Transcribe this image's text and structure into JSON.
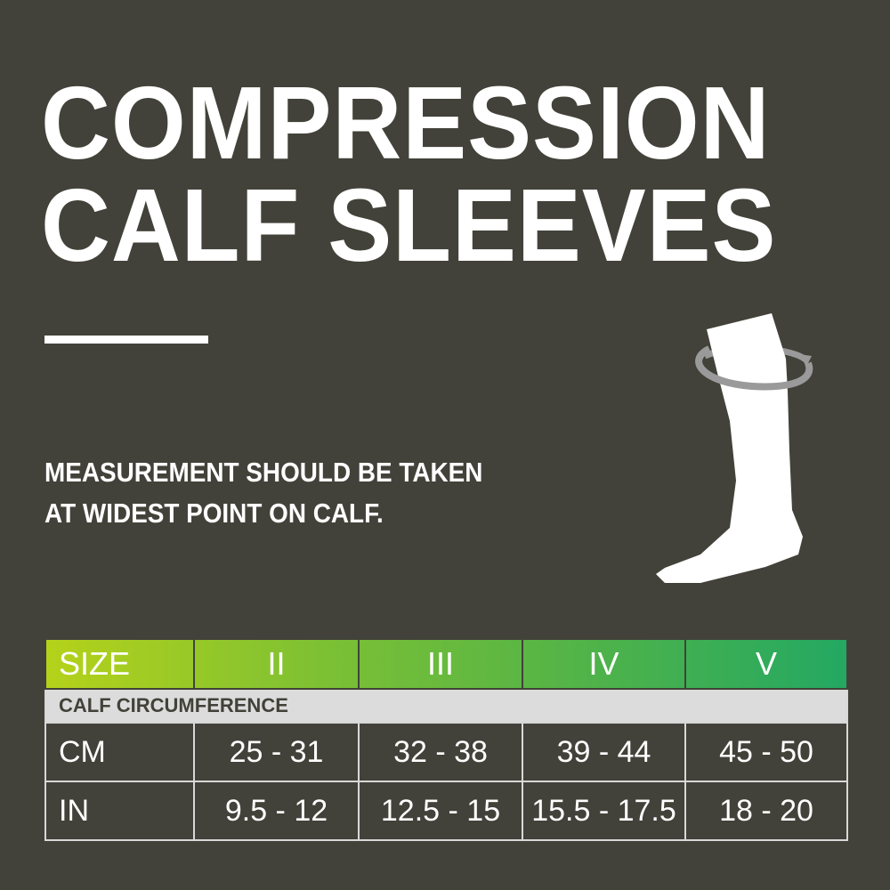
{
  "title": {
    "line1": "COMPRESSION",
    "line2": "CALF SLEEVES"
  },
  "instruction": {
    "line1": "MEASUREMENT SHOULD BE TAKEN",
    "line2": "AT WIDEST POINT ON CALF."
  },
  "illustration": {
    "icon": "sock-with-measure-ring-icon"
  },
  "colors": {
    "background": "#42423a",
    "gradient_start": "#b5d21a",
    "gradient_end": "#23a862",
    "subheader": "#dcdcdc"
  },
  "size_table": {
    "header": [
      "SIZE",
      "II",
      "III",
      "IV",
      "V"
    ],
    "subheader": "CALF CIRCUMFERENCE",
    "rows": [
      {
        "unit": "CM",
        "values": [
          "25 - 31",
          "32 - 38",
          "39 - 44",
          "45 - 50"
        ]
      },
      {
        "unit": "IN",
        "values": [
          "9.5 - 12",
          "12.5 - 15",
          "15.5 - 17.5",
          "18 - 20"
        ]
      }
    ]
  }
}
